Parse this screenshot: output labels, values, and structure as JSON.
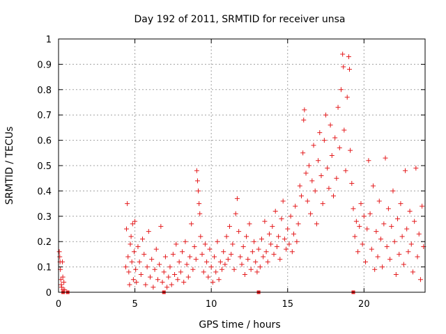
{
  "chart_data": {
    "type": "scatter",
    "title": "Day 192 of 2011, SRMTID for receiver unsa",
    "xlabel": "GPS time / hours",
    "ylabel": "SRMTID / TECUs",
    "xlim": [
      0,
      24
    ],
    "ylim": [
      0,
      1
    ],
    "xticks": [
      0,
      5,
      10,
      15,
      20
    ],
    "yticks": [
      0,
      0.1,
      0.2,
      0.3,
      0.4,
      0.5,
      0.6,
      0.7,
      0.8,
      0.9,
      1
    ],
    "xtick_labels": [
      "0",
      "5",
      "10",
      "15",
      "20"
    ],
    "ytick_labels": [
      "0",
      "0.1",
      "0.2",
      "0.3",
      "0.4",
      "0.5",
      "0.6",
      "0.7",
      "0.8",
      "0.9",
      "1"
    ],
    "grid": true,
    "marker": "plus",
    "color": "#e41a1c",
    "series": [
      {
        "points": [
          [
            0.05,
            0.16
          ],
          [
            0.08,
            0.14
          ],
          [
            0.1,
            0.12
          ],
          [
            0.12,
            0.09
          ],
          [
            0.15,
            0.05
          ],
          [
            0.18,
            0.03
          ],
          [
            0.2,
            0.02
          ],
          [
            0.25,
            0.12
          ],
          [
            0.28,
            0.06
          ],
          [
            0.3,
            0.01
          ],
          [
            0.35,
            0.04
          ],
          [
            0.4,
            0.01
          ],
          [
            4.4,
            0.1
          ],
          [
            4.45,
            0.25
          ],
          [
            4.5,
            0.35
          ],
          [
            4.55,
            0.14
          ],
          [
            4.6,
            0.08
          ],
          [
            4.65,
            0.03
          ],
          [
            4.7,
            0.19
          ],
          [
            4.75,
            0.22
          ],
          [
            4.8,
            0.12
          ],
          [
            4.85,
            0.27
          ],
          [
            4.9,
            0.05
          ],
          [
            4.95,
            0.16
          ],
          [
            5.0,
            0.28
          ],
          [
            5.05,
            0.09
          ],
          [
            5.1,
            0.04
          ],
          [
            5.2,
            0.18
          ],
          [
            5.3,
            0.12
          ],
          [
            5.4,
            0.07
          ],
          [
            5.5,
            0.21
          ],
          [
            5.6,
            0.15
          ],
          [
            5.7,
            0.03
          ],
          [
            5.8,
            0.1
          ],
          [
            5.9,
            0.24
          ],
          [
            6.0,
            0.06
          ],
          [
            6.1,
            0.13
          ],
          [
            6.2,
            0.02
          ],
          [
            6.3,
            0.09
          ],
          [
            6.4,
            0.17
          ],
          [
            6.5,
            0.05
          ],
          [
            6.6,
            0.11
          ],
          [
            6.7,
            0.26
          ],
          [
            6.8,
            0.04
          ],
          [
            6.9,
            0.08
          ],
          [
            7.0,
            0.14
          ],
          [
            7.1,
            0.02
          ],
          [
            7.2,
            0.06
          ],
          [
            7.3,
            0.1
          ],
          [
            7.4,
            0.03
          ],
          [
            7.5,
            0.15
          ],
          [
            7.6,
            0.07
          ],
          [
            7.7,
            0.19
          ],
          [
            7.8,
            0.05
          ],
          [
            7.9,
            0.12
          ],
          [
            8.0,
            0.08
          ],
          [
            8.1,
            0.16
          ],
          [
            8.2,
            0.04
          ],
          [
            8.3,
            0.2
          ],
          [
            8.4,
            0.11
          ],
          [
            8.5,
            0.06
          ],
          [
            8.6,
            0.14
          ],
          [
            8.7,
            0.27
          ],
          [
            8.8,
            0.09
          ],
          [
            8.9,
            0.18
          ],
          [
            9.0,
            0.13
          ],
          [
            9.05,
            0.48
          ],
          [
            9.1,
            0.44
          ],
          [
            9.15,
            0.4
          ],
          [
            9.2,
            0.35
          ],
          [
            9.25,
            0.31
          ],
          [
            9.3,
            0.22
          ],
          [
            9.4,
            0.15
          ],
          [
            9.5,
            0.08
          ],
          [
            9.6,
            0.19
          ],
          [
            9.7,
            0.12
          ],
          [
            9.8,
            0.06
          ],
          [
            9.9,
            0.17
          ],
          [
            10.0,
            0.1
          ],
          [
            10.1,
            0.04
          ],
          [
            10.2,
            0.14
          ],
          [
            10.3,
            0.08
          ],
          [
            10.4,
            0.2
          ],
          [
            10.5,
            0.05
          ],
          [
            10.6,
            0.12
          ],
          [
            10.7,
            0.09
          ],
          [
            10.8,
            0.16
          ],
          [
            10.9,
            0.11
          ],
          [
            11.0,
            0.22
          ],
          [
            11.1,
            0.13
          ],
          [
            11.2,
            0.26
          ],
          [
            11.3,
            0.15
          ],
          [
            11.4,
            0.19
          ],
          [
            11.5,
            0.09
          ],
          [
            11.6,
            0.31
          ],
          [
            11.7,
            0.37
          ],
          [
            11.8,
            0.24
          ],
          [
            11.9,
            0.14
          ],
          [
            12.0,
            0.11
          ],
          [
            12.1,
            0.18
          ],
          [
            12.2,
            0.07
          ],
          [
            12.3,
            0.22
          ],
          [
            12.4,
            0.13
          ],
          [
            12.5,
            0.27
          ],
          [
            12.6,
            0.09
          ],
          [
            12.7,
            0.16
          ],
          [
            12.8,
            0.2
          ],
          [
            12.9,
            0.12
          ],
          [
            13.0,
            0.08
          ],
          [
            13.1,
            0.17
          ],
          [
            13.2,
            0.1
          ],
          [
            13.3,
            0.21
          ],
          [
            13.4,
            0.14
          ],
          [
            13.5,
            0.28
          ],
          [
            13.6,
            0.16
          ],
          [
            13.7,
            0.12
          ],
          [
            13.8,
            0.23
          ],
          [
            13.9,
            0.19
          ],
          [
            14.0,
            0.26
          ],
          [
            14.1,
            0.15
          ],
          [
            14.2,
            0.32
          ],
          [
            14.3,
            0.18
          ],
          [
            14.4,
            0.22
          ],
          [
            14.5,
            0.13
          ],
          [
            14.6,
            0.29
          ],
          [
            14.7,
            0.36
          ],
          [
            14.8,
            0.21
          ],
          [
            14.9,
            0.17
          ],
          [
            15.0,
            0.25
          ],
          [
            15.1,
            0.19
          ],
          [
            15.2,
            0.3
          ],
          [
            15.3,
            0.16
          ],
          [
            15.4,
            0.23
          ],
          [
            15.5,
            0.34
          ],
          [
            15.6,
            0.2
          ],
          [
            15.7,
            0.27
          ],
          [
            15.8,
            0.42
          ],
          [
            15.9,
            0.38
          ],
          [
            16.0,
            0.55
          ],
          [
            16.05,
            0.68
          ],
          [
            16.1,
            0.72
          ],
          [
            16.2,
            0.47
          ],
          [
            16.3,
            0.36
          ],
          [
            16.4,
            0.5
          ],
          [
            16.5,
            0.31
          ],
          [
            16.6,
            0.44
          ],
          [
            16.7,
            0.58
          ],
          [
            16.8,
            0.4
          ],
          [
            16.9,
            0.27
          ],
          [
            17.0,
            0.52
          ],
          [
            17.1,
            0.63
          ],
          [
            17.2,
            0.46
          ],
          [
            17.3,
            0.35
          ],
          [
            17.4,
            0.6
          ],
          [
            17.5,
            0.7
          ],
          [
            17.6,
            0.49
          ],
          [
            17.7,
            0.41
          ],
          [
            17.8,
            0.66
          ],
          [
            17.9,
            0.54
          ],
          [
            18.0,
            0.38
          ],
          [
            18.1,
            0.61
          ],
          [
            18.2,
            0.45
          ],
          [
            18.3,
            0.73
          ],
          [
            18.4,
            0.57
          ],
          [
            18.5,
            0.8
          ],
          [
            18.6,
            0.94
          ],
          [
            18.65,
            0.89
          ],
          [
            18.7,
            0.64
          ],
          [
            18.8,
            0.48
          ],
          [
            18.9,
            0.77
          ],
          [
            19.0,
            0.93
          ],
          [
            19.05,
            0.88
          ],
          [
            19.1,
            0.56
          ],
          [
            19.2,
            0.43
          ],
          [
            19.3,
            0.33
          ],
          [
            19.4,
            0.22
          ],
          [
            19.5,
            0.28
          ],
          [
            19.6,
            0.16
          ],
          [
            19.7,
            0.26
          ],
          [
            19.8,
            0.35
          ],
          [
            19.9,
            0.19
          ],
          [
            20.0,
            0.3
          ],
          [
            20.1,
            0.12
          ],
          [
            20.2,
            0.25
          ],
          [
            20.3,
            0.52
          ],
          [
            20.4,
            0.31
          ],
          [
            20.5,
            0.17
          ],
          [
            20.6,
            0.42
          ],
          [
            20.7,
            0.09
          ],
          [
            20.8,
            0.24
          ],
          [
            20.9,
            0.14
          ],
          [
            21.0,
            0.36
          ],
          [
            21.1,
            0.21
          ],
          [
            21.2,
            0.1
          ],
          [
            21.3,
            0.27
          ],
          [
            21.4,
            0.53
          ],
          [
            21.5,
            0.18
          ],
          [
            21.6,
            0.33
          ],
          [
            21.7,
            0.13
          ],
          [
            21.8,
            0.26
          ],
          [
            21.9,
            0.4
          ],
          [
            22.0,
            0.2
          ],
          [
            22.1,
            0.07
          ],
          [
            22.2,
            0.29
          ],
          [
            22.3,
            0.15
          ],
          [
            22.4,
            0.35
          ],
          [
            22.5,
            0.22
          ],
          [
            22.6,
            0.11
          ],
          [
            22.7,
            0.48
          ],
          [
            22.8,
            0.25
          ],
          [
            22.9,
            0.16
          ],
          [
            23.0,
            0.32
          ],
          [
            23.1,
            0.19
          ],
          [
            23.2,
            0.08
          ],
          [
            23.3,
            0.28
          ],
          [
            23.4,
            0.49
          ],
          [
            23.5,
            0.14
          ],
          [
            23.6,
            0.23
          ],
          [
            23.7,
            0.05
          ],
          [
            23.8,
            0.34
          ],
          [
            23.9,
            0.18
          ]
        ]
      }
    ],
    "baseline_markers_x": [
      0.3,
      0.6,
      6.9,
      13.1,
      19.3
    ]
  }
}
